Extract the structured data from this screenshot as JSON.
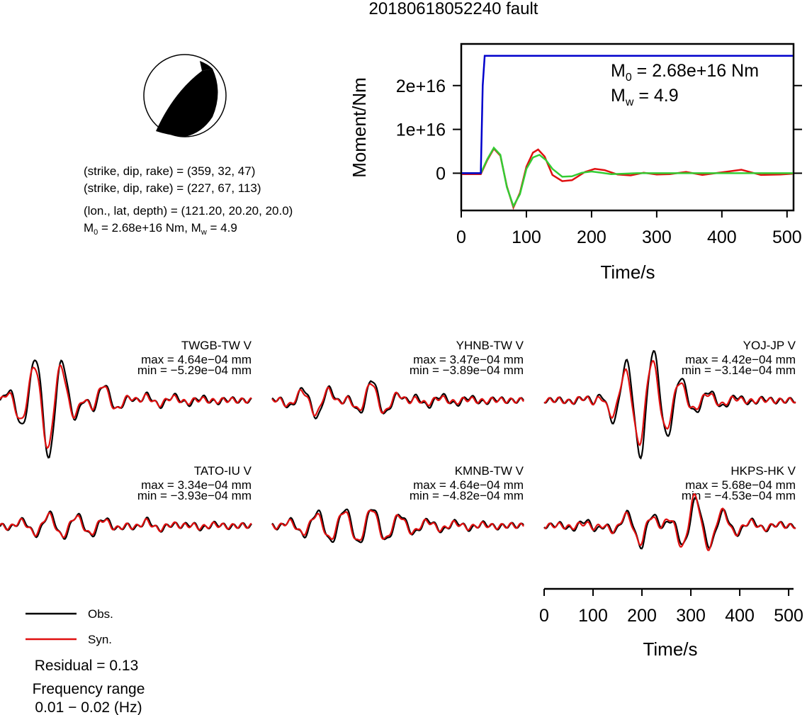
{
  "title": "20180618052240 fault",
  "colors": {
    "moment_rate": "#e01010",
    "moment_rate_fit": "#33cc33",
    "cumulative_moment": "#0000cc",
    "obs": "#000000",
    "syn": "#e01010",
    "beachball_fill": "#000000"
  },
  "mechanism": {
    "plane1": "(strike, dip, rake) = (359, 32, 47)",
    "plane2": "(strike, dip, rake) = (227, 67, 113)",
    "location": "(lon., lat, depth) = (121.20, 20.20, 20.0)",
    "moment_prefix": "M",
    "moment_sub": "0",
    "moment_suffix": " = 2.68e+16 Nm, M",
    "mw_sub": "w",
    "mw_suffix": " = 4.9"
  },
  "stf": {
    "ylabel": "Moment/Nm",
    "xlabel": "Time/s",
    "m0_prefix": "M",
    "m0_sub": "0",
    "m0_value": " = 2.68e+16 Nm",
    "mw_prefix": "M",
    "mw_sub": "w",
    "mw_value": " = 4.9"
  },
  "chart_data": [
    {
      "type": "line",
      "ylabel": "Moment/Nm",
      "xlabel": "Time/s",
      "xlim": [
        0,
        510
      ],
      "ylim": [
        -8500000000000000.0,
        2.95e+16
      ],
      "xticks": [
        "0",
        "100",
        "200",
        "300",
        "400",
        "500"
      ],
      "yticks": [
        "0",
        "1e+16",
        "2e+16"
      ],
      "annotations": [
        "M0 = 2.68e+16 Nm",
        "Mw = 4.9"
      ],
      "series": [
        {
          "color": "#0000cc",
          "x": [
            0,
            30,
            33,
            36,
            40,
            510
          ],
          "y": [
            0,
            0,
            2e+16,
            2.68e+16,
            2.68e+16,
            2.68e+16
          ]
        },
        {
          "color": "#e01010",
          "x": [
            0,
            30,
            40,
            50,
            60,
            70,
            80,
            90,
            100,
            110,
            118,
            128,
            140,
            155,
            170,
            190,
            205,
            220,
            240,
            260,
            280,
            300,
            320,
            345,
            370,
            400,
            430,
            460,
            490,
            510
          ],
          "y": [
            -200000000000000.0,
            -200000000000000.0,
            3000000000000000.0,
            5600000000000000.0,
            4000000000000000.0,
            -3000000000000000.0,
            -7800000000000000.0,
            -4500000000000000.0,
            1500000000000000.0,
            4700000000000000.0,
            5400000000000000.0,
            3800000000000000.0,
            -400000000000000.0,
            -1800000000000000.0,
            -1600000000000000.0,
            300000000000000.0,
            1000000000000000.0,
            700000000000000.0,
            -300000000000000.0,
            -500000000000000.0,
            100000000000000.0,
            -300000000000000.0,
            -200000000000000.0,
            300000000000000.0,
            -400000000000000.0,
            200000000000000.0,
            800000000000000.0,
            -400000000000000.0,
            -300000000000000.0,
            -100000000000000.0
          ]
        },
        {
          "color": "#33cc33",
          "x": [
            0,
            30,
            40,
            50,
            60,
            70,
            80,
            90,
            100,
            110,
            120,
            130,
            140,
            155,
            170,
            185,
            200,
            215,
            230,
            250,
            270,
            300,
            510
          ],
          "y": [
            0,
            0,
            3200000000000000.0,
            5800000000000000.0,
            4200000000000000.0,
            -3200000000000000.0,
            -7500000000000000.0,
            -4800000000000000.0,
            1000000000000000.0,
            3600000000000000.0,
            4200000000000000.0,
            3000000000000000.0,
            1000000000000000.0,
            -800000000000000.0,
            -700000000000000.0,
            100000000000000.0,
            400000000000000.0,
            100000000000000.0,
            -200000000000000.0,
            -100000000000000.0,
            0,
            0,
            0
          ]
        }
      ]
    },
    {
      "type": "line",
      "xlabel": "Time/s",
      "xlim": [
        0,
        510
      ],
      "xticks": [
        "0",
        "100",
        "200",
        "300",
        "400",
        "500"
      ],
      "legend": [
        "Obs.",
        "Syn."
      ],
      "panels": [
        {
          "station": "TWGB-TW V",
          "max": "max = 4.64e−04 mm",
          "min": "min = −5.29e−04 mm",
          "x": [
            0,
            100,
            200,
            300,
            400,
            510
          ],
          "obs": [
            0,
            0.95,
            -0.3,
            0.1,
            0.05,
            0
          ],
          "syn": [
            0,
            0.8,
            -0.28,
            0.08,
            0.02,
            0
          ]
        },
        {
          "station": "YHNB-TW V",
          "max": "max = 3.47e−04 mm",
          "min": "min = −3.89e−04 mm",
          "x": [
            0,
            100,
            200,
            300,
            400,
            510
          ],
          "obs": [
            0,
            0.3,
            -0.35,
            0.1,
            0.05,
            0
          ],
          "syn": [
            0,
            0.25,
            -0.3,
            0.06,
            0.02,
            0
          ]
        },
        {
          "station": "YOJ-JP V",
          "max": "max = 4.42e−04 mm",
          "min": "min = −3.14e−04 mm",
          "x": [
            0,
            100,
            200,
            300,
            400,
            510
          ],
          "obs": [
            0,
            -0.05,
            0.95,
            0.2,
            0.05,
            0
          ],
          "syn": [
            0,
            -0.05,
            0.75,
            0.15,
            0.02,
            0
          ]
        },
        {
          "station": "TATO-IU V",
          "max": "max = 3.34e−04 mm",
          "min": "min = −3.93e−04 mm",
          "x": [
            0,
            100,
            200,
            300,
            400,
            510
          ],
          "obs": [
            0,
            0.2,
            0.15,
            -0.1,
            0.05,
            0
          ],
          "syn": [
            0,
            0.18,
            0.12,
            -0.08,
            0.03,
            0
          ]
        },
        {
          "station": "KMNB-TW V",
          "max": "max = 4.64e−04 mm",
          "min": "min = −4.82e−04 mm",
          "x": [
            0,
            100,
            200,
            300,
            400,
            510
          ],
          "obs": [
            0,
            0.25,
            0.3,
            0.1,
            0.05,
            0
          ],
          "syn": [
            0,
            0.2,
            0.28,
            0.08,
            0.03,
            0
          ]
        },
        {
          "station": "HKPS-HK V",
          "max": "max = 5.68e−04 mm",
          "min": "min = −4.53e−04 mm",
          "x": [
            0,
            100,
            200,
            300,
            400,
            510
          ],
          "obs": [
            0,
            0.1,
            -0.35,
            0.45,
            0.1,
            0
          ],
          "syn": [
            0,
            0.05,
            -0.3,
            0.5,
            0.08,
            0
          ]
        }
      ]
    }
  ],
  "legend": {
    "obs_label": "Obs.",
    "syn_label": "Syn."
  },
  "residual": "Residual = 0.13",
  "frequency_title": "Frequency range",
  "frequency_value": "0.01 − 0.02 (Hz)"
}
